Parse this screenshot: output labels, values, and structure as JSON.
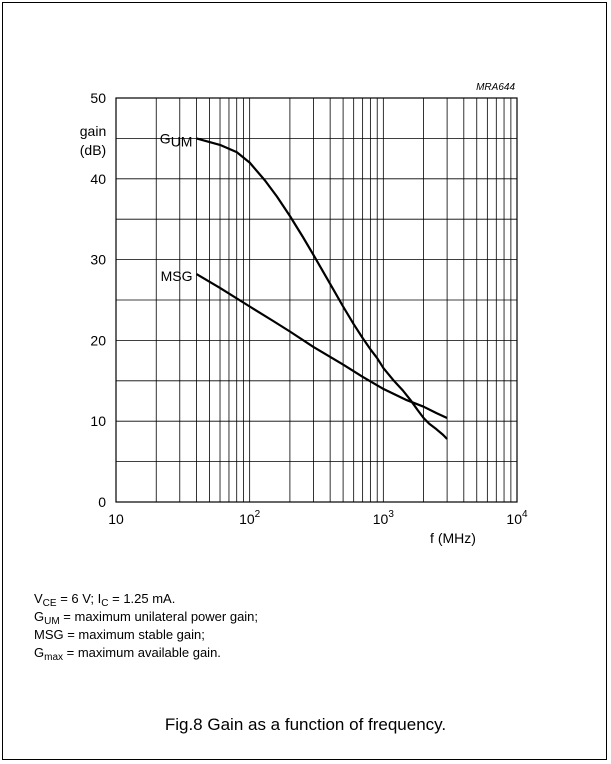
{
  "chart_data": {
    "type": "line",
    "code": "MRA644",
    "x_scale": "log",
    "xlim": [
      10,
      10000
    ],
    "ylim": [
      0,
      50
    ],
    "x_tick_labels": [
      {
        "value": 10,
        "base": "10",
        "exp": ""
      },
      {
        "value": 100,
        "base": "10",
        "exp": "2"
      },
      {
        "value": 1000,
        "base": "10",
        "exp": "3"
      },
      {
        "value": 10000,
        "base": "10",
        "exp": "4"
      }
    ],
    "y_ticks": [
      0,
      10,
      20,
      30,
      40,
      50
    ],
    "ylabel_line1": "gain",
    "ylabel_line2": "(dB)",
    "xlabel": "f (MHz)",
    "grid": true,
    "series": [
      {
        "name": "G_UM",
        "label_main": "G",
        "label_sub": "UM",
        "label_anchor": {
          "x": 40,
          "y": 45
        },
        "x": [
          40,
          60,
          80,
          100,
          130,
          160,
          200,
          250,
          300,
          400,
          500,
          600,
          700,
          800,
          900,
          1000,
          1200,
          1400,
          1600,
          1800,
          2000,
          2200,
          2500,
          2800,
          3000
        ],
        "y": [
          45,
          44.2,
          43.3,
          42.0,
          39.8,
          37.8,
          35.4,
          32.8,
          30.6,
          27.0,
          24.2,
          22.0,
          20.3,
          18.9,
          17.8,
          16.6,
          15.0,
          13.8,
          12.6,
          11.4,
          10.4,
          9.7,
          9.0,
          8.3,
          7.8
        ]
      },
      {
        "name": "MSG",
        "label_main": "MSG",
        "label_sub": "",
        "label_anchor": {
          "x": 40,
          "y": 28
        },
        "x": [
          40,
          60,
          100,
          150,
          200,
          300,
          500,
          700,
          1000,
          1500,
          2000,
          2500,
          3000
        ],
        "y": [
          28.2,
          26.5,
          24.2,
          22.4,
          21.1,
          19.2,
          17.0,
          15.5,
          14.0,
          12.6,
          11.8,
          11.0,
          10.4
        ]
      }
    ]
  },
  "notes": {
    "line1": {
      "v": "V",
      "v_sub": "CE",
      "mid": " = 6 V; I",
      "i_sub": "C",
      "end": " = 1.25 mA."
    },
    "line2": {
      "g": "G",
      "g_sub": "UM",
      "text": " = maximum unilateral power gain;"
    },
    "line3": {
      "text": "MSG = maximum stable gain;"
    },
    "line4": {
      "g": "G",
      "g_sub": "max",
      "text": " = maximum available gain."
    }
  },
  "caption": "Fig.8  Gain as a function of frequency."
}
